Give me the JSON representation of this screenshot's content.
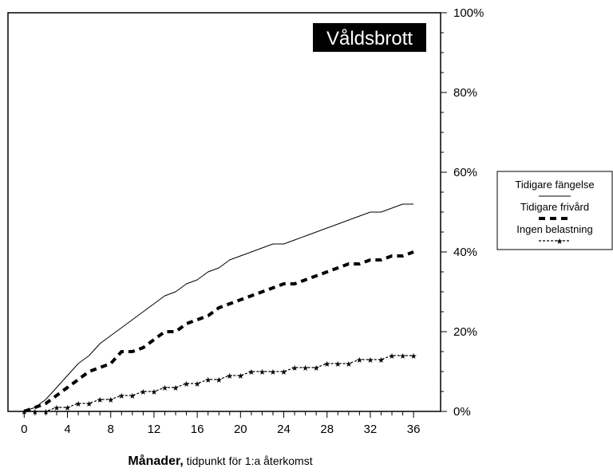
{
  "chart_data": {
    "type": "line",
    "title": "Våldsbrott",
    "xlabel_bold": "Månader,",
    "xlabel_rest": " tidpunkt för 1:a återkomst",
    "ylabel": "",
    "xlim": [
      -1.5,
      38.5
    ],
    "ylim": [
      0,
      100
    ],
    "x_ticks": [
      0,
      4,
      8,
      12,
      16,
      20,
      24,
      28,
      32,
      36
    ],
    "y_ticks": [
      0,
      20,
      40,
      60,
      80,
      100
    ],
    "y_tick_labels": [
      "0%",
      "20%",
      "40%",
      "60%",
      "80%",
      "100%"
    ],
    "y_axis_side": "right",
    "grid": false,
    "legend_position": "right",
    "x": [
      0,
      1,
      2,
      3,
      4,
      5,
      6,
      7,
      8,
      9,
      10,
      11,
      12,
      13,
      14,
      15,
      16,
      17,
      18,
      19,
      20,
      21,
      22,
      23,
      24,
      25,
      26,
      27,
      28,
      29,
      30,
      31,
      32,
      33,
      34,
      35,
      36
    ],
    "series": [
      {
        "name": "Tidigare fängelse",
        "style": "solid",
        "values": [
          0,
          1,
          3,
          6,
          9,
          12,
          14,
          17,
          19,
          21,
          23,
          25,
          27,
          29,
          30,
          32,
          33,
          35,
          36,
          38,
          39,
          40,
          41,
          42,
          42,
          43,
          44,
          45,
          46,
          47,
          48,
          49,
          50,
          50,
          51,
          52,
          52
        ]
      },
      {
        "name": "Tidigare frivård",
        "style": "thick-dash",
        "values": [
          0,
          1,
          2,
          4,
          6,
          8,
          10,
          11,
          12,
          15,
          15,
          16,
          18,
          20,
          20,
          22,
          23,
          24,
          26,
          27,
          28,
          29,
          30,
          31,
          32,
          32,
          33,
          34,
          35,
          36,
          37,
          37,
          38,
          38,
          39,
          39,
          40
        ]
      },
      {
        "name": "Ingen belastning",
        "style": "dotted-star",
        "values": [
          0,
          0,
          0,
          1,
          1,
          2,
          2,
          3,
          3,
          4,
          4,
          5,
          5,
          6,
          6,
          7,
          7,
          8,
          8,
          9,
          9,
          10,
          10,
          10,
          10,
          11,
          11,
          11,
          12,
          12,
          12,
          13,
          13,
          13,
          14,
          14,
          14
        ]
      }
    ]
  }
}
